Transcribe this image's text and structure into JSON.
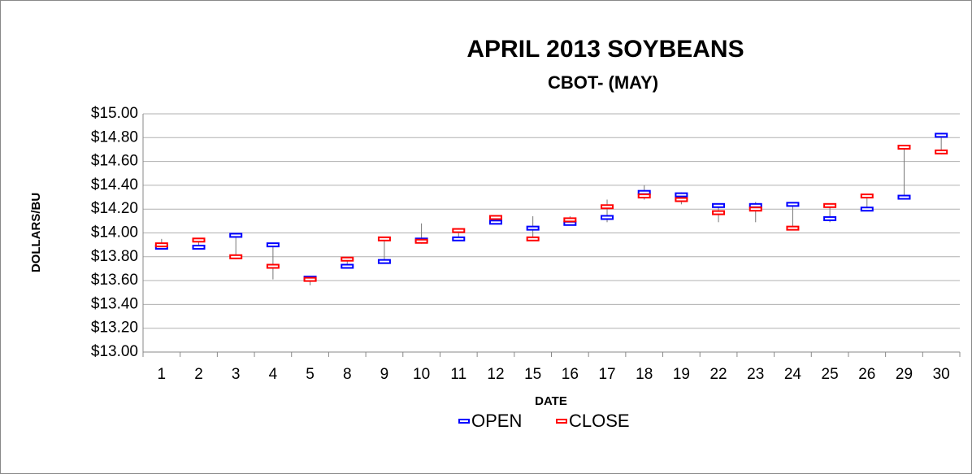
{
  "chart_data": {
    "type": "ohlc",
    "title": "APRIL 2013 SOYBEANS",
    "subtitle": "CBOT- (MAY)",
    "x_label": "DATE",
    "y_label": "DOLLARS/BU",
    "categories": [
      "1",
      "2",
      "3",
      "4",
      "5",
      "8",
      "9",
      "10",
      "11",
      "12",
      "15",
      "16",
      "17",
      "18",
      "19",
      "22",
      "23",
      "24",
      "25",
      "26",
      "29",
      "30"
    ],
    "series": [
      {
        "name": "OPEN",
        "color": "#0000ff",
        "values": [
          13.88,
          13.88,
          13.98,
          13.9,
          13.62,
          13.72,
          13.76,
          13.94,
          13.95,
          14.09,
          14.04,
          14.08,
          14.13,
          14.34,
          14.32,
          14.23,
          14.23,
          14.24,
          14.12,
          14.2,
          14.3,
          14.82
        ]
      },
      {
        "name": "CLOSE",
        "color": "#ff0000",
        "values": [
          13.9,
          13.94,
          13.8,
          13.72,
          13.61,
          13.78,
          13.95,
          13.93,
          14.02,
          14.13,
          13.95,
          14.11,
          14.22,
          14.31,
          14.28,
          14.17,
          14.2,
          14.04,
          14.23,
          14.31,
          14.72,
          14.68
        ]
      }
    ],
    "high": [
      13.95,
      13.95,
      13.99,
      13.91,
      13.63,
      13.79,
      13.96,
      14.08,
      14.04,
      14.15,
      14.14,
      14.14,
      14.28,
      14.4,
      14.34,
      14.24,
      14.26,
      14.25,
      14.24,
      14.33,
      14.73,
      14.84
    ],
    "low": [
      13.87,
      13.87,
      13.78,
      13.61,
      13.56,
      13.71,
      13.75,
      13.91,
      13.94,
      14.08,
      13.94,
      14.07,
      14.09,
      14.28,
      14.24,
      14.09,
      14.09,
      14.03,
      14.09,
      14.19,
      14.29,
      14.66
    ],
    "ylim": [
      13.0,
      15.0
    ],
    "yticks": [
      {
        "value": 13.0,
        "label": "$13.00"
      },
      {
        "value": 13.2,
        "label": "$13.20"
      },
      {
        "value": 13.4,
        "label": "$13.40"
      },
      {
        "value": 13.6,
        "label": "$13.60"
      },
      {
        "value": 13.8,
        "label": "$13.80"
      },
      {
        "value": 14.0,
        "label": "$14.00"
      },
      {
        "value": 14.2,
        "label": "$14.20"
      },
      {
        "value": 14.4,
        "label": "$14.40"
      },
      {
        "value": 14.6,
        "label": "$14.60"
      },
      {
        "value": 14.8,
        "label": "$14.80"
      },
      {
        "value": 15.0,
        "label": "$15.00"
      }
    ],
    "grid": true,
    "legend": "bottom"
  }
}
